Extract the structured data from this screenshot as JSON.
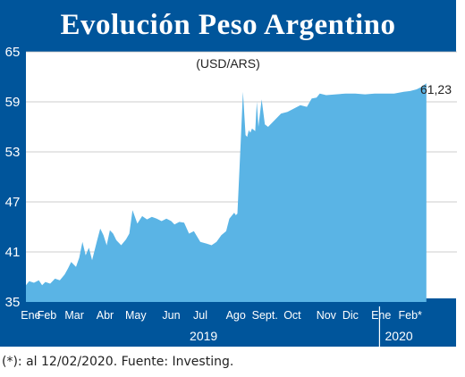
{
  "title": "Evolución Peso Argentino",
  "caption": "(*): al 12/02/2020. Fuente: Investing.",
  "colors": {
    "frame": "#00559b",
    "area": "#5ab4e5",
    "text": "#222222"
  },
  "chart_data": {
    "type": "area",
    "title": "Evolución Peso Argentino",
    "subtitle": "(USD/ARS)",
    "yticks": [
      35,
      41,
      47,
      53,
      59,
      65
    ],
    "ylim": [
      35,
      65
    ],
    "xlim": [
      0,
      12.6
    ],
    "month_labels": [
      "Ene",
      "Feb",
      "Mar",
      "Abr",
      "May",
      "Jun",
      "Jul",
      "Ago",
      "Sept.",
      "Oct",
      "Nov",
      "Dic",
      "Ene",
      "Feb*"
    ],
    "month_positions": [
      0.15,
      0.65,
      1.5,
      2.45,
      3.4,
      4.5,
      5.4,
      6.5,
      7.4,
      8.25,
      9.3,
      10.05,
      11.0,
      11.9
    ],
    "years": [
      {
        "label": "2019",
        "center": 5.5
      },
      {
        "label": "2020",
        "center": 11.55
      }
    ],
    "year_divider": 10.95,
    "last_value_label": "61,23",
    "series": [
      {
        "x": [
          0.0,
          0.1,
          0.25,
          0.4,
          0.5,
          0.6,
          0.75,
          0.9,
          1.05,
          1.2,
          1.3,
          1.4,
          1.55,
          1.65,
          1.75,
          1.85,
          1.95,
          2.05,
          2.2,
          2.3,
          2.4,
          2.5,
          2.6,
          2.7,
          2.8,
          2.95,
          3.1,
          3.2,
          3.3,
          3.45,
          3.6,
          3.75,
          3.9,
          4.05,
          4.2,
          4.35,
          4.5,
          4.6,
          4.75,
          4.9,
          5.05,
          5.2,
          5.4,
          5.6,
          5.75,
          5.9,
          6.05,
          6.2,
          6.3,
          6.45,
          6.5,
          6.55,
          6.65,
          6.72,
          6.8,
          6.85,
          6.9,
          6.95,
          7.0,
          7.1,
          7.15,
          7.2,
          7.3,
          7.4,
          7.5,
          7.7,
          7.9,
          8.1,
          8.3,
          8.5,
          8.7,
          8.85,
          9.0,
          9.1,
          9.3,
          9.6,
          9.9,
          10.2,
          10.5,
          10.8,
          11.1,
          11.4,
          11.7,
          11.9,
          12.1,
          12.25,
          12.4
        ],
        "y": [
          37.0,
          37.5,
          37.3,
          37.6,
          37.0,
          37.4,
          37.2,
          37.8,
          37.6,
          38.3,
          39.0,
          39.8,
          39.2,
          40.3,
          42.2,
          40.6,
          41.5,
          40.0,
          42.3,
          43.8,
          43.0,
          41.8,
          43.6,
          43.2,
          42.4,
          41.8,
          42.5,
          43.2,
          46.0,
          44.4,
          45.3,
          44.9,
          45.2,
          45.0,
          44.7,
          45.0,
          44.7,
          44.3,
          44.6,
          44.5,
          43.2,
          43.5,
          42.2,
          42.0,
          41.8,
          42.2,
          43.0,
          43.5,
          45.0,
          45.7,
          45.4,
          45.6,
          54.0,
          60.2,
          55.0,
          54.8,
          55.6,
          55.3,
          55.8,
          55.5,
          59.0,
          56.0,
          59.3,
          56.3,
          56.0,
          56.8,
          57.6,
          57.8,
          58.2,
          58.6,
          58.4,
          59.4,
          59.5,
          60.0,
          59.8,
          59.9,
          60.0,
          60.0,
          59.9,
          60.0,
          60.0,
          60.0,
          60.2,
          60.3,
          60.5,
          60.8,
          61.23
        ]
      }
    ]
  }
}
